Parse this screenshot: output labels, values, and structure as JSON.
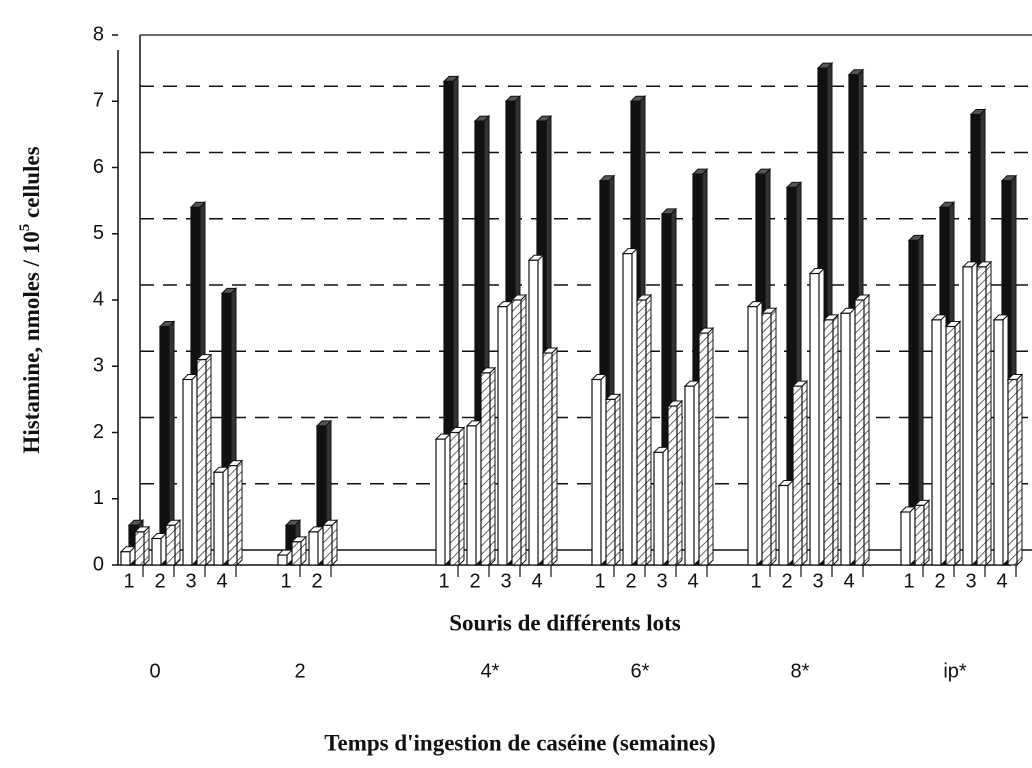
{
  "chart_data": {
    "type": "bar3d",
    "ylabel": {
      "main": "Histamine, nmoles / 10",
      "sup": "5",
      "tail": " cellules"
    },
    "xlabel": "Souris de différents lots",
    "xlabel2": "Temps d'ingestion de caséine (semaines)",
    "ylim": [
      0,
      8
    ],
    "yticks": [
      0,
      1,
      2,
      3,
      4,
      5,
      6,
      7,
      8
    ],
    "grid": true,
    "colors": [
      "#ffffff",
      "#111111",
      "hatch"
    ],
    "groups": [
      {
        "label": "0",
        "categories": [
          "1",
          "2",
          "3",
          "4"
        ],
        "series": [
          {
            "values": [
              0.2,
              0.4,
              2.8,
              1.4
            ]
          },
          {
            "values": [
              0.6,
              3.6,
              5.4,
              4.1
            ]
          },
          {
            "values": [
              0.5,
              0.6,
              3.1,
              1.5
            ]
          }
        ]
      },
      {
        "label": "2",
        "categories": [
          "1",
          "2"
        ],
        "series": [
          {
            "values": [
              0.15,
              0.5
            ]
          },
          {
            "values": [
              0.6,
              2.1
            ]
          },
          {
            "values": [
              0.35,
              0.6
            ]
          }
        ]
      },
      {
        "label": "4*",
        "categories": [
          "1",
          "2",
          "3",
          "4"
        ],
        "series": [
          {
            "values": [
              1.9,
              2.1,
              3.9,
              4.6
            ]
          },
          {
            "values": [
              7.3,
              6.7,
              7.0,
              6.7
            ]
          },
          {
            "values": [
              2.0,
              2.9,
              4.0,
              3.2
            ]
          }
        ]
      },
      {
        "label": "6*",
        "categories": [
          "1",
          "2",
          "3",
          "4"
        ],
        "series": [
          {
            "values": [
              2.8,
              4.7,
              1.7,
              2.7
            ]
          },
          {
            "values": [
              5.8,
              7.0,
              5.3,
              5.9
            ]
          },
          {
            "values": [
              2.5,
              4.0,
              2.4,
              3.5
            ]
          }
        ]
      },
      {
        "label": "8*",
        "categories": [
          "1",
          "2",
          "3",
          "4"
        ],
        "series": [
          {
            "values": [
              3.9,
              1.2,
              4.4,
              3.8
            ]
          },
          {
            "values": [
              5.9,
              5.7,
              7.5,
              7.4
            ]
          },
          {
            "values": [
              3.8,
              2.7,
              3.7,
              4.0
            ]
          }
        ]
      },
      {
        "label": "ip*",
        "categories": [
          "1",
          "2",
          "3",
          "4"
        ],
        "series": [
          {
            "values": [
              0.8,
              3.7,
              4.5,
              3.7
            ]
          },
          {
            "values": [
              4.9,
              5.4,
              6.8,
              5.8
            ]
          },
          {
            "values": [
              0.9,
              3.6,
              4.5,
              2.8
            ]
          }
        ]
      }
    ]
  }
}
